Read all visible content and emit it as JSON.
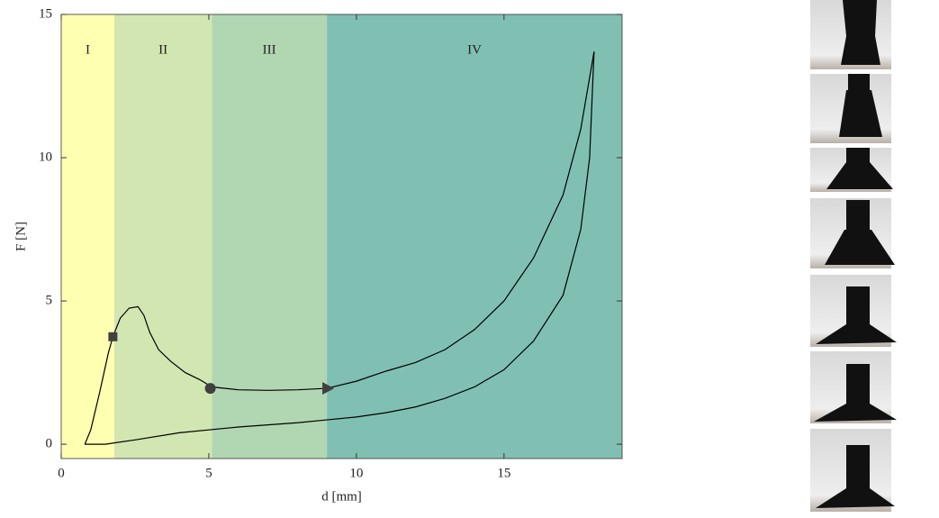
{
  "chart_data": {
    "type": "line",
    "xlabel": "d [mm]",
    "ylabel": "F [N]",
    "xlim": [
      0,
      19
    ],
    "ylim": [
      -0.5,
      15
    ],
    "xticks": [
      0,
      5,
      10,
      15
    ],
    "yticks": [
      0,
      5,
      10,
      15
    ],
    "regions": [
      {
        "label": "I",
        "start": 0,
        "end": 1.8,
        "color": "#ffffb2"
      },
      {
        "label": "II",
        "start": 1.8,
        "end": 5.1,
        "color": "#d2e6b2"
      },
      {
        "label": "III",
        "start": 5.1,
        "end": 9.0,
        "color": "#b0d7b2"
      },
      {
        "label": "IV",
        "start": 9.0,
        "end": 19,
        "color": "#80c0b2"
      }
    ],
    "series": [
      {
        "color": "#000000",
        "x": [
          0.8,
          1.0,
          1.3,
          1.6,
          1.75,
          2.0,
          2.3,
          2.6,
          2.8,
          3.0,
          3.3,
          3.7,
          4.2,
          4.7,
          5.1,
          6,
          7,
          8,
          9,
          10,
          11,
          12,
          13,
          14,
          15,
          16,
          17,
          17.6,
          18.05
        ],
        "values": [
          0,
          0.5,
          1.8,
          3.2,
          3.75,
          4.4,
          4.75,
          4.8,
          4.5,
          3.9,
          3.3,
          2.9,
          2.5,
          2.25,
          2.0,
          1.9,
          1.88,
          1.9,
          1.95,
          2.2,
          2.55,
          2.85,
          3.3,
          4.0,
          5.0,
          6.5,
          8.7,
          11,
          13.7
        ]
      },
      {
        "color": "#000000",
        "x": [
          18.05,
          17.9,
          17.6,
          17,
          16,
          15,
          14,
          13,
          12,
          11,
          10,
          9,
          8,
          6,
          4,
          2.5,
          1.5,
          0.8
        ],
        "values": [
          13.7,
          10,
          7.5,
          5.2,
          3.6,
          2.6,
          2.0,
          1.6,
          1.3,
          1.1,
          0.95,
          0.85,
          0.75,
          0.6,
          0.4,
          0.15,
          0,
          0
        ]
      }
    ],
    "markers": [
      {
        "shape": "square",
        "x": 1.75,
        "y": 3.75,
        "color": "#404040"
      },
      {
        "shape": "circle",
        "x": 5.05,
        "y": 1.95,
        "color": "#404040"
      },
      {
        "shape": "triangle",
        "x": 9.0,
        "y": 1.95,
        "color": "#404040"
      }
    ]
  }
}
